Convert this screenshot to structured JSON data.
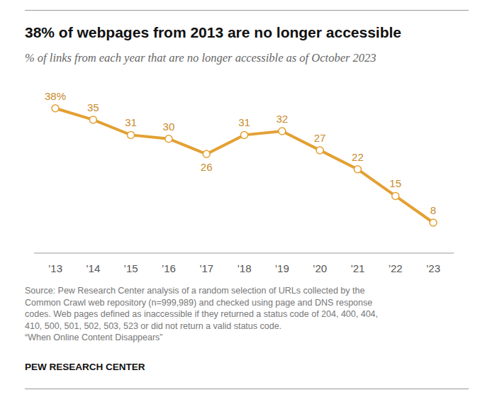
{
  "chart_data": {
    "type": "line",
    "title": "38% of webpages from 2013 are no longer accessible",
    "subtitle": "% of links from each year that are no longer accessible as of October 2023",
    "categories": [
      "’13",
      "’14",
      "’15",
      "’16",
      "’17",
      "’18",
      "’19",
      "’20",
      "’21",
      "’22",
      "’23"
    ],
    "values": [
      38,
      35,
      31,
      30,
      26,
      31,
      32,
      27,
      22,
      15,
      8
    ],
    "value_labels": [
      "38%",
      "35",
      "31",
      "30",
      "26",
      "31",
      "32",
      "27",
      "22",
      "15",
      "8"
    ],
    "color": "#e3a033",
    "marker": "circle",
    "data_labels": true,
    "tick_labels": "x",
    "grid": false,
    "ylim": [
      0,
      40
    ],
    "notes": [
      "Source: Pew Research Center analysis of a random selection of URLs collected by the",
      "Common Crawl web repository (n=999,989) and checked using page and DNS response",
      "codes. Web pages defined as inaccessible if they returned a status code of 204, 400, 404,",
      "410, 500, 501, 502, 503, 523 or did not return a valid status code.",
      "“When Online Content Disappears”"
    ],
    "credit": "PEW RESEARCH CENTER"
  }
}
